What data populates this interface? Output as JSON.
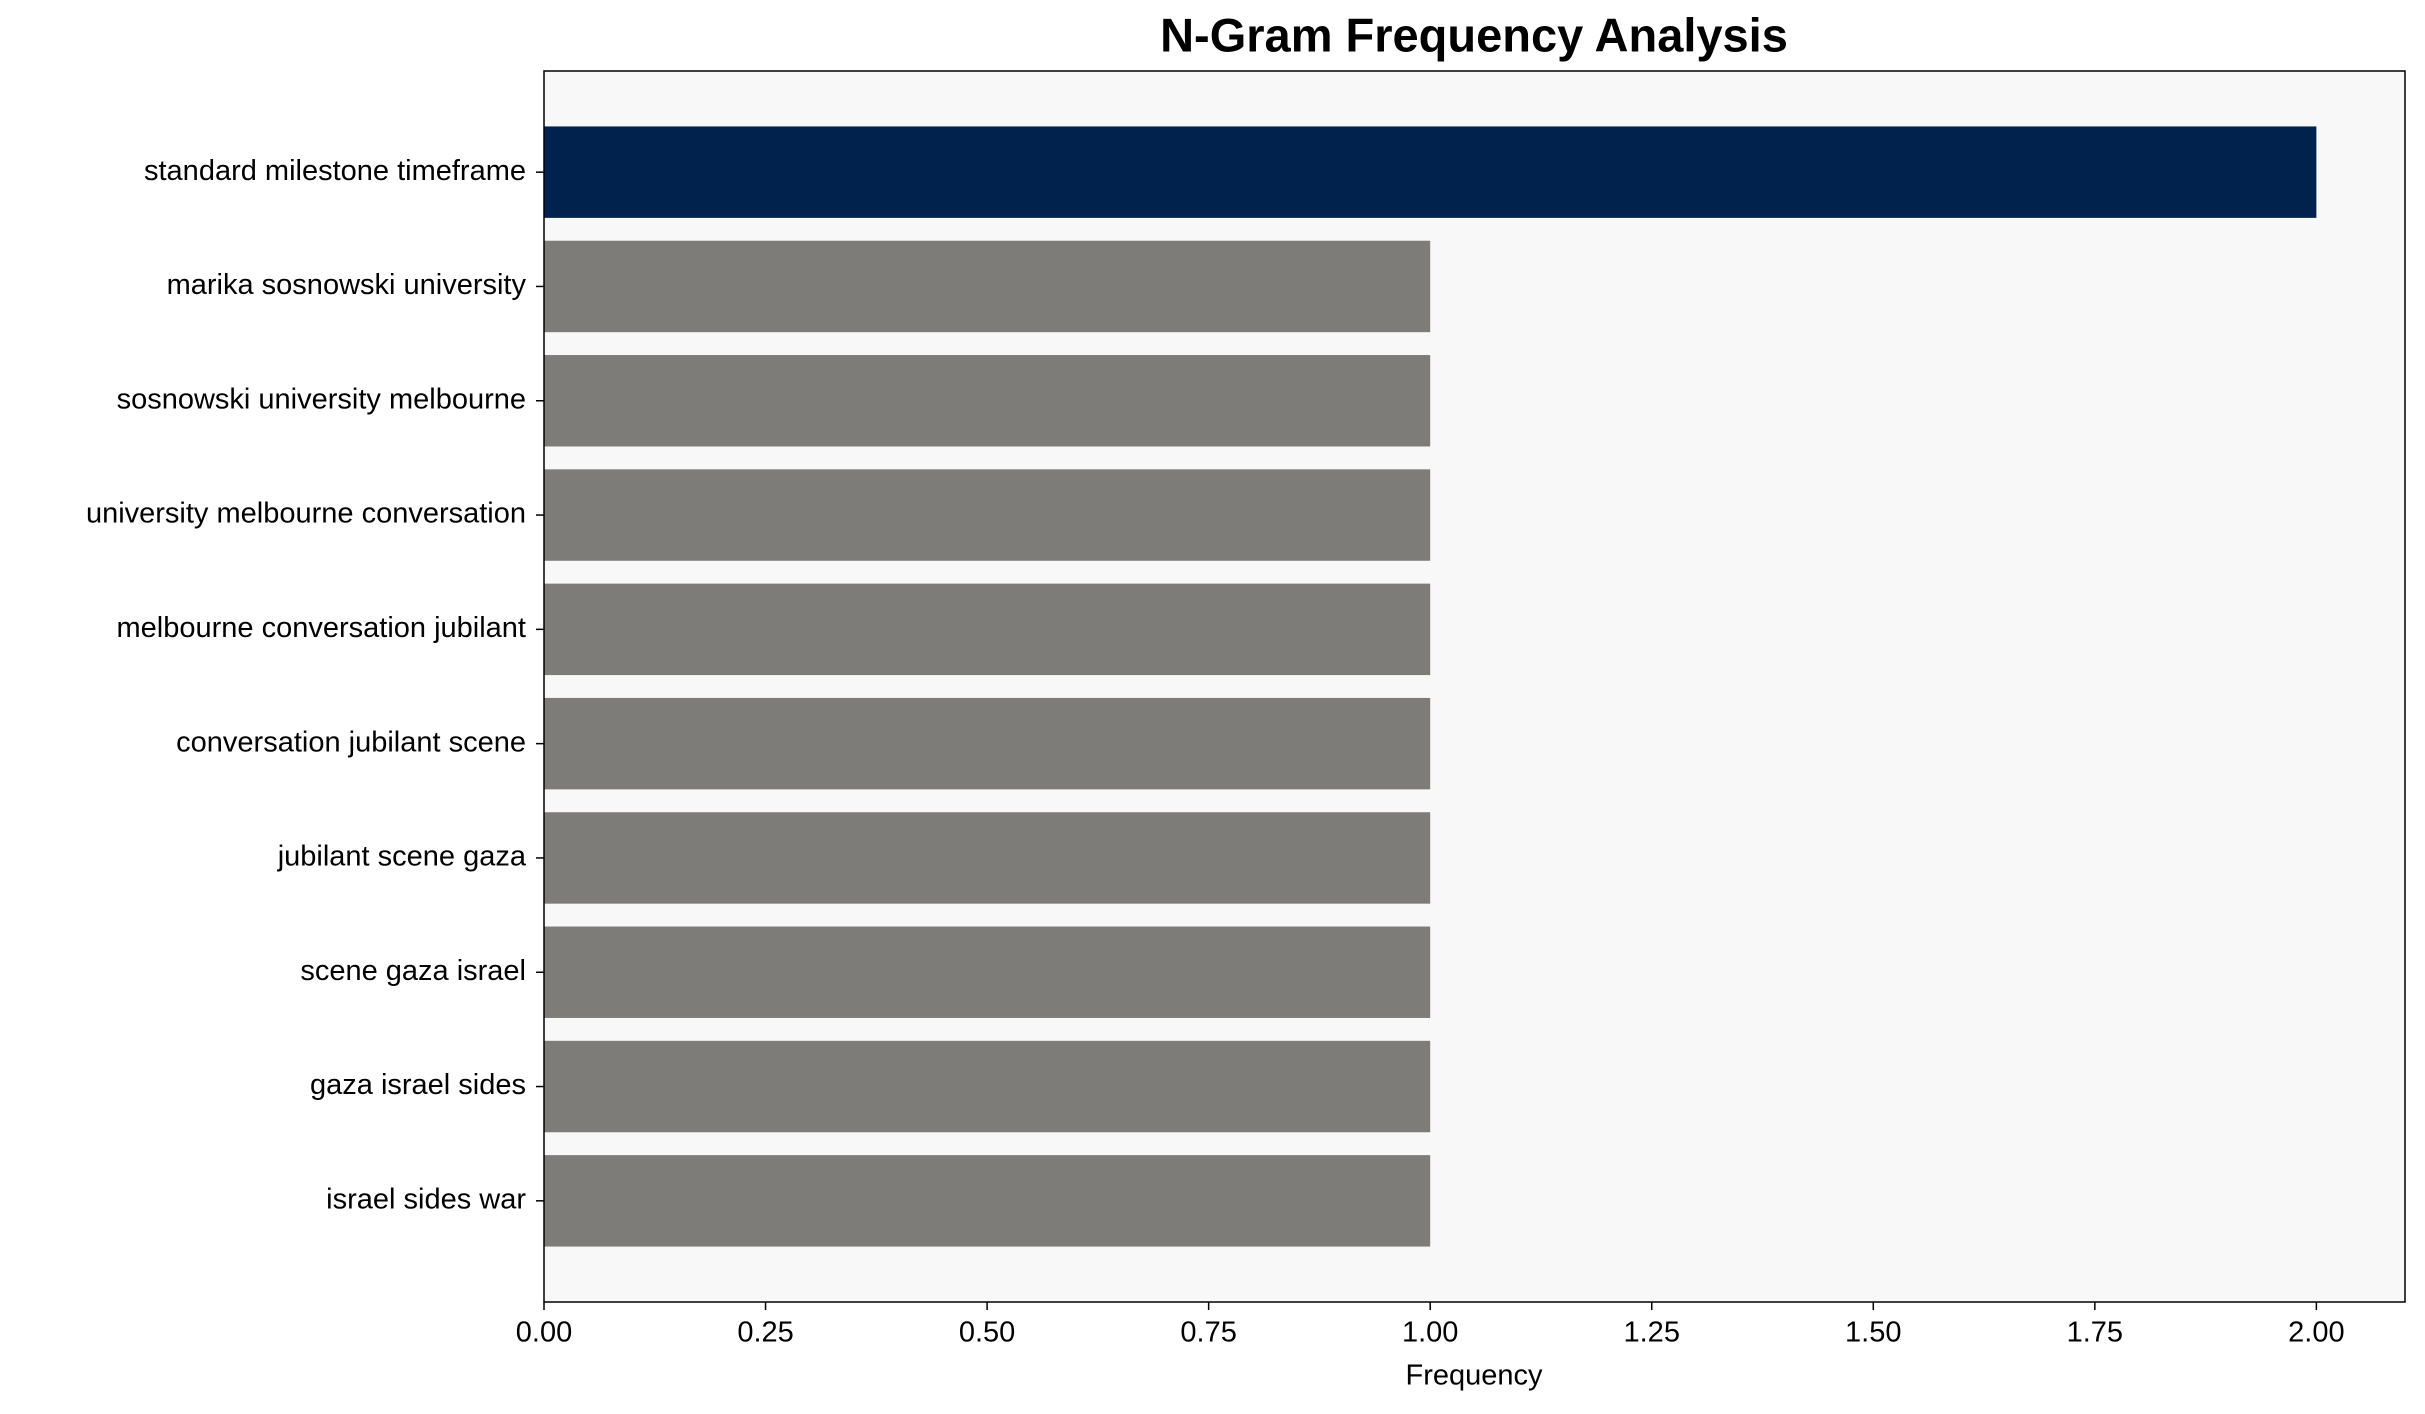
{
  "chart_data": {
    "type": "barh",
    "title": "N-Gram Frequency Analysis",
    "xlabel": "Frequency",
    "categories": [
      "standard milestone timeframe",
      "marika sosnowski university",
      "sosnowski university melbourne",
      "university melbourne conversation",
      "melbourne conversation jubilant",
      "conversation jubilant scene",
      "jubilant scene gaza",
      "scene gaza israel",
      "gaza israel sides",
      "israel sides war"
    ],
    "values": [
      2,
      1,
      1,
      1,
      1,
      1,
      1,
      1,
      1,
      1
    ],
    "colors": [
      "#02224e",
      "#7d7c78",
      "#7d7c78",
      "#7d7c78",
      "#7d7c78",
      "#7d7c78",
      "#7d7c78",
      "#7d7c78",
      "#7d7c78",
      "#7d7c78"
    ],
    "xlim": [
      0,
      2.1
    ],
    "xticks": [
      {
        "value": 0,
        "label": "0.00"
      },
      {
        "value": 0.25,
        "label": "0.25"
      },
      {
        "value": 0.5,
        "label": "0.50"
      },
      {
        "value": 0.75,
        "label": "0.75"
      },
      {
        "value": 1,
        "label": "1.00"
      },
      {
        "value": 1.25,
        "label": "1.25"
      },
      {
        "value": 1.5,
        "label": "1.50"
      },
      {
        "value": 1.75,
        "label": "1.75"
      },
      {
        "value": 2,
        "label": "2.00"
      }
    ],
    "grid": false
  }
}
